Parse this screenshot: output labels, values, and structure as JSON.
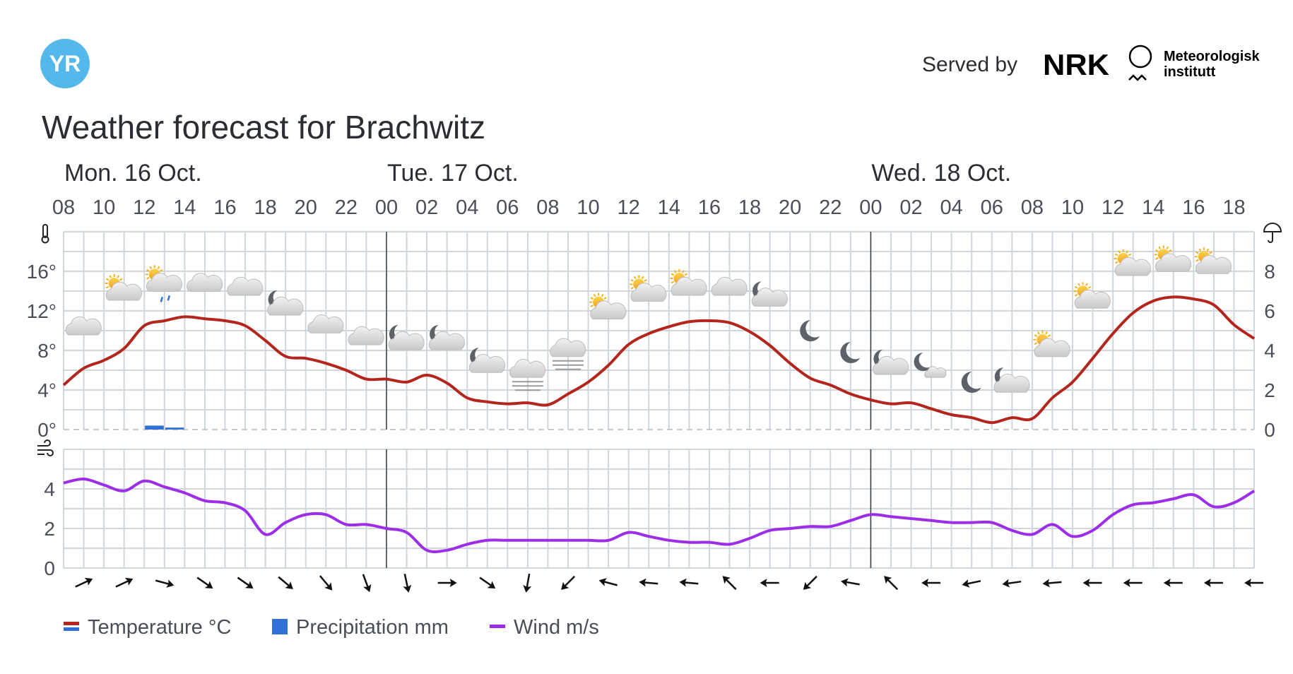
{
  "header": {
    "logo_text": "YR",
    "served_by": "Served by",
    "nrk_logo_text": "NRK",
    "met_line1": "Meteorologisk",
    "met_line2": "institutt",
    "title": "Weather forecast for Brachwitz"
  },
  "colors": {
    "temperature": "#b3261e",
    "precipitation": "#2f6fd6",
    "wind": "#9b2ee6",
    "grid": "#cfd6dc",
    "logo": "#55b8ea"
  },
  "chart_data": {
    "type": "line",
    "title": "Weather forecast for Brachwitz",
    "days": [
      {
        "label": "Mon. 16 Oct.",
        "start_hour_index": 0
      },
      {
        "label": "Tue. 17 Oct.",
        "start_hour_index": 16
      },
      {
        "label": "Wed. 18 Oct.",
        "start_hour_index": 40
      }
    ],
    "day_separator_hour_indices": [
      16,
      40
    ],
    "hour_labels": [
      "08",
      "10",
      "12",
      "14",
      "16",
      "18",
      "20",
      "22",
      "00",
      "02",
      "04",
      "06",
      "08",
      "10",
      "12",
      "14",
      "16",
      "18",
      "20",
      "22",
      "00",
      "02",
      "04",
      "06",
      "08",
      "10",
      "12",
      "14",
      "16",
      "18"
    ],
    "start_hour": 8,
    "hours_span": 59,
    "temp_axis": {
      "ticks": [
        "0°",
        "4°",
        "8°",
        "12°",
        "16°"
      ],
      "values": [
        0,
        4,
        8,
        12,
        16
      ],
      "ylim": [
        0,
        20
      ],
      "label_icon": "thermometer-icon"
    },
    "precip_axis": {
      "ticks": [
        "0",
        "2",
        "4",
        "6",
        "8"
      ],
      "values": [
        0,
        2,
        4,
        6,
        8
      ],
      "ylim": [
        0,
        10
      ],
      "label_icon": "umbrella-icon"
    },
    "wind_axis": {
      "ticks": [
        "0",
        "2",
        "4"
      ],
      "values": [
        0,
        2,
        4
      ],
      "ylim": [
        0,
        6
      ],
      "label_icon": "wind-icon"
    },
    "series": [
      {
        "name": "Temperature °C",
        "unit": "°C",
        "values": [
          4.5,
          6.2,
          7.0,
          8.2,
          10.5,
          11.0,
          11.4,
          11.2,
          11.0,
          10.5,
          9.0,
          7.4,
          7.2,
          6.7,
          6.0,
          5.1,
          5.1,
          4.8,
          5.5,
          4.7,
          3.2,
          2.8,
          2.6,
          2.7,
          2.5,
          3.6,
          4.8,
          6.5,
          8.6,
          9.7,
          10.4,
          10.9,
          11.0,
          10.8,
          9.9,
          8.5,
          6.7,
          5.2,
          4.5,
          3.6,
          3.0,
          2.6,
          2.7,
          2.1,
          1.5,
          1.2,
          0.7,
          1.2,
          1.1,
          3.2,
          4.8,
          7.2,
          9.7,
          11.8,
          13.0,
          13.4,
          13.2,
          12.6,
          10.6,
          9.2
        ]
      },
      {
        "name": "Precipitation mm",
        "unit": "mm",
        "bars": [
          {
            "hour_index": 4,
            "value": 0.2
          },
          {
            "hour_index": 5,
            "value": 0.1
          }
        ]
      },
      {
        "name": "Wind m/s",
        "unit": "m/s",
        "values": [
          4.3,
          4.5,
          4.2,
          3.9,
          4.4,
          4.1,
          3.8,
          3.4,
          3.3,
          2.9,
          1.7,
          2.3,
          2.7,
          2.7,
          2.2,
          2.2,
          2.0,
          1.8,
          0.9,
          0.9,
          1.2,
          1.4,
          1.4,
          1.4,
          1.4,
          1.4,
          1.4,
          1.4,
          1.8,
          1.6,
          1.4,
          1.3,
          1.3,
          1.2,
          1.5,
          1.9,
          2.0,
          2.1,
          2.1,
          2.4,
          2.7,
          2.6,
          2.5,
          2.4,
          2.3,
          2.3,
          2.3,
          1.9,
          1.7,
          2.2,
          1.6,
          1.9,
          2.7,
          3.2,
          3.3,
          3.5,
          3.7,
          3.1,
          3.3,
          3.9
        ]
      }
    ],
    "weather_symbols": [
      "cloudy",
      "partly-sunny",
      "partly-sunny-rain",
      "cloudy",
      "cloudy",
      "partly-night",
      "cloudy",
      "cloudy",
      "partly-night",
      "partly-night",
      "partly-night",
      "fog",
      "fog",
      "partly-sunny",
      "partly-sunny",
      "partly-sunny",
      "cloudy",
      "partly-night",
      "clear-night",
      "clear-night",
      "partly-night",
      "fair-night",
      "clear-night",
      "partly-night",
      "partly-sunny",
      "partly-sunny",
      "partly-sunny",
      "partly-sunny",
      "partly-sunny"
    ],
    "wind_arrow_angles_deg": [
      -25,
      -25,
      15,
      35,
      35,
      40,
      50,
      70,
      78,
      0,
      35,
      100,
      135,
      195,
      185,
      185,
      225,
      180,
      135,
      190,
      225,
      180,
      168,
      172,
      175,
      180,
      180,
      180,
      180,
      180
    ],
    "legend": [
      {
        "label": "Temperature °C",
        "swatch": "temperature"
      },
      {
        "label": "Precipitation mm",
        "swatch": "precipitation"
      },
      {
        "label": "Wind m/s",
        "swatch": "wind"
      }
    ],
    "legend_position": "bottom-left",
    "grid": true
  }
}
